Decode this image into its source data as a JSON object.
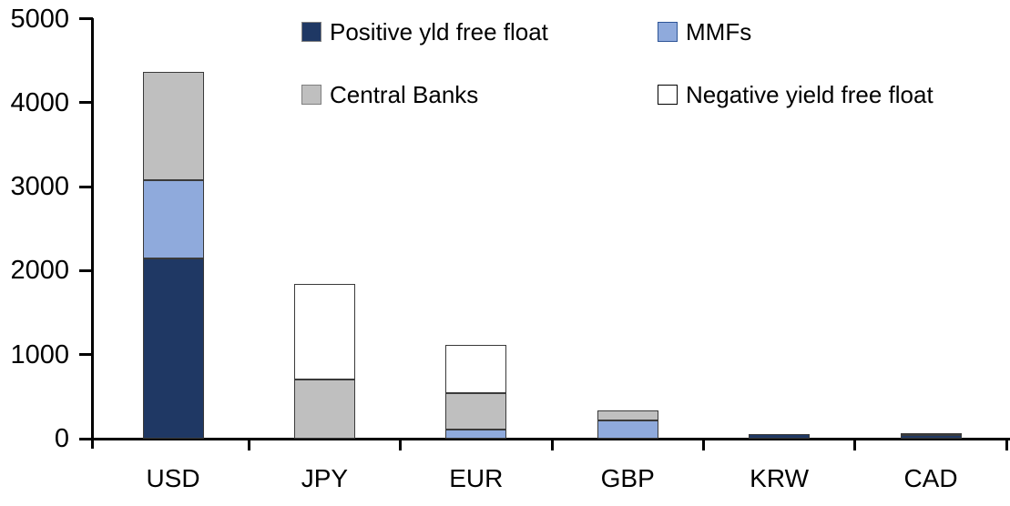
{
  "chart_data": {
    "type": "bar",
    "subtype": "stacked-vertical",
    "title": "",
    "xlabel": "",
    "ylabel": "",
    "categories": [
      "USD",
      "JPY",
      "EUR",
      "GBP",
      "KRW",
      "CAD"
    ],
    "series": [
      {
        "name": "Positive yld free float",
        "color": "#1f3864",
        "border": "#808080",
        "values": [
          2150,
          0,
          0,
          0,
          50,
          40
        ]
      },
      {
        "name": "MMFs",
        "color": "#8faadc",
        "border": "#2e5597",
        "values": [
          930,
          0,
          110,
          215,
          0,
          0
        ]
      },
      {
        "name": "Central Banks",
        "color": "#bfbfbf",
        "border": "#7f7f7f",
        "values": [
          1290,
          700,
          430,
          125,
          0,
          30
        ]
      },
      {
        "name": "Negative yield free float",
        "color": "#ffffff",
        "border": "#000000",
        "values": [
          0,
          1140,
          580,
          0,
          0,
          0
        ]
      }
    ],
    "totals": [
      4370,
      1840,
      1120,
      340,
      50,
      70
    ],
    "ylim": [
      0,
      5000
    ],
    "yticks": [
      0,
      1000,
      2000,
      3000,
      4000,
      5000
    ],
    "grid": "off",
    "legend_position": "top, two rows, two columns",
    "legend_order": [
      "Positive yld free float",
      "MMFs",
      "Central Banks",
      "Negative yield free float"
    ]
  }
}
